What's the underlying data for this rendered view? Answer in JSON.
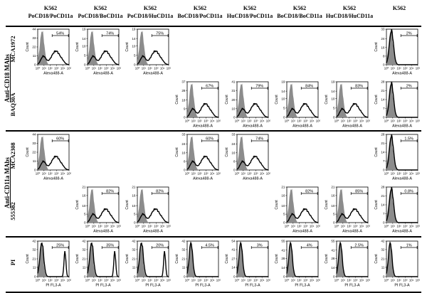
{
  "columns": [
    {
      "line1": "K562",
      "line2": "PoCD18/PoCD11a"
    },
    {
      "line1": "K562",
      "line2": "PoCD18/BoCD11a"
    },
    {
      "line1": "K562",
      "line2": "PoCD18/HuCD11a"
    },
    {
      "line1": "K562",
      "line2": "BoCD18/PoCD11a"
    },
    {
      "line1": "K562",
      "line2": "HuCD18/PoCD11a"
    },
    {
      "line1": "K562",
      "line2": "BoCD18/BoCD11a"
    },
    {
      "line1": "K562",
      "line2": "HuCD18/HuCD11a"
    },
    {
      "line1": "K562",
      "line2": ""
    }
  ],
  "groups": [
    {
      "label": "Anti-CD18 MAbs"
    },
    {
      "label": "Anti-CD11a MAbs"
    }
  ],
  "rows": [
    {
      "label": "MCA1972"
    },
    {
      "label": "BAQ30A"
    },
    {
      "label": "MCA2308"
    },
    {
      "label": "555382"
    },
    {
      "label": "PI"
    }
  ],
  "axis": {
    "y_label": "Count",
    "x_label_mab": "Alexa488-A",
    "x_label_pi": "PI FL3-A",
    "x_ticks": [
      "10⁰",
      "10¹",
      "10²",
      "10³",
      "10⁴",
      "10⁵"
    ]
  },
  "panels": [
    {
      "row": 0,
      "col": 0,
      "pct": "54%",
      "ymax": 44,
      "yticks": [
        0,
        11,
        22,
        33,
        44
      ],
      "shape": "pos"
    },
    {
      "row": 0,
      "col": 1,
      "pct": "74%",
      "ymax": 19,
      "yticks": [
        0,
        5,
        10,
        14,
        19
      ],
      "shape": "pos"
    },
    {
      "row": 0,
      "col": 2,
      "pct": "75%",
      "ymax": 19,
      "yticks": [
        0,
        5,
        10,
        14,
        19
      ],
      "shape": "pos"
    },
    {
      "row": 0,
      "col": 7,
      "pct": "2%",
      "ymax": 33,
      "yticks": [
        0,
        8,
        16,
        24,
        33
      ],
      "shape": "neg"
    },
    {
      "row": 1,
      "col": 3,
      "pct": "67%",
      "ymax": 37,
      "yticks": [
        0,
        9,
        18,
        28,
        37
      ],
      "shape": "pos"
    },
    {
      "row": 1,
      "col": 4,
      "pct": "79%",
      "ymax": 41,
      "yticks": [
        0,
        10,
        20,
        31,
        41
      ],
      "shape": "pos"
    },
    {
      "row": 1,
      "col": 5,
      "pct": "84%",
      "ymax": 19,
      "yticks": [
        0,
        5,
        10,
        14,
        19
      ],
      "shape": "pos"
    },
    {
      "row": 1,
      "col": 6,
      "pct": "83%",
      "ymax": 19,
      "yticks": [
        0,
        5,
        10,
        14,
        19
      ],
      "shape": "pos"
    },
    {
      "row": 1,
      "col": 7,
      "pct": "2%",
      "ymax": 28,
      "yticks": [
        0,
        7,
        14,
        21,
        28
      ],
      "shape": "neg"
    },
    {
      "row": 2,
      "col": 0,
      "pct": "60%",
      "ymax": 44,
      "yticks": [
        0,
        11,
        22,
        33,
        44
      ],
      "shape": "pos"
    },
    {
      "row": 2,
      "col": 3,
      "pct": "60%",
      "ymax": 33,
      "yticks": [
        0,
        8,
        16,
        24,
        33
      ],
      "shape": "pos"
    },
    {
      "row": 2,
      "col": 4,
      "pct": "74%",
      "ymax": 33,
      "yticks": [
        0,
        8,
        16,
        24,
        33
      ],
      "shape": "pos"
    },
    {
      "row": 2,
      "col": 7,
      "pct": "1.5%",
      "ymax": 28,
      "yticks": [
        0,
        7,
        14,
        21,
        28
      ],
      "shape": "neg"
    },
    {
      "row": 3,
      "col": 1,
      "pct": "82%",
      "ymax": 21,
      "yticks": [
        0,
        5,
        10,
        16,
        21
      ],
      "shape": "pos"
    },
    {
      "row": 3,
      "col": 2,
      "pct": "82%",
      "ymax": 21,
      "yticks": [
        0,
        5,
        10,
        16,
        21
      ],
      "shape": "pos"
    },
    {
      "row": 3,
      "col": 5,
      "pct": "82%",
      "ymax": 21,
      "yticks": [
        0,
        5,
        10,
        16,
        21
      ],
      "shape": "pos"
    },
    {
      "row": 3,
      "col": 6,
      "pct": "85%",
      "ymax": 21,
      "yticks": [
        0,
        5,
        10,
        16,
        21
      ],
      "shape": "pos"
    },
    {
      "row": 3,
      "col": 7,
      "pct": "0.8%",
      "ymax": 28,
      "yticks": [
        0,
        7,
        14,
        21,
        28
      ],
      "shape": "neg"
    },
    {
      "row": 4,
      "col": 0,
      "pct": "25%",
      "ymax": 42,
      "yticks": [
        0,
        11,
        21,
        32,
        42
      ],
      "shape": "pi_peak"
    },
    {
      "row": 4,
      "col": 1,
      "pct": "35%",
      "ymax": 42,
      "yticks": [
        0,
        11,
        21,
        32,
        42
      ],
      "shape": "pi_peak"
    },
    {
      "row": 4,
      "col": 2,
      "pct": "20%",
      "ymax": 42,
      "yticks": [
        0,
        11,
        21,
        32,
        42
      ],
      "shape": "pi_peak"
    },
    {
      "row": 4,
      "col": 3,
      "pct": "4.5%",
      "ymax": 42,
      "yticks": [
        0,
        11,
        21,
        32,
        42
      ],
      "shape": "pi"
    },
    {
      "row": 4,
      "col": 4,
      "pct": "3%",
      "ymax": 54,
      "yticks": [
        0,
        14,
        27,
        41,
        54
      ],
      "shape": "pi"
    },
    {
      "row": 4,
      "col": 5,
      "pct": "4%",
      "ymax": 55,
      "yticks": [
        0,
        14,
        28,
        41,
        55
      ],
      "shape": "pi"
    },
    {
      "row": 4,
      "col": 6,
      "pct": "2.5%",
      "ymax": 55,
      "yticks": [
        0,
        14,
        28,
        41,
        55
      ],
      "shape": "pi"
    },
    {
      "row": 4,
      "col": 7,
      "pct": "1%",
      "ymax": 42,
      "yticks": [
        0,
        11,
        21,
        32,
        42
      ],
      "shape": "pi"
    }
  ]
}
